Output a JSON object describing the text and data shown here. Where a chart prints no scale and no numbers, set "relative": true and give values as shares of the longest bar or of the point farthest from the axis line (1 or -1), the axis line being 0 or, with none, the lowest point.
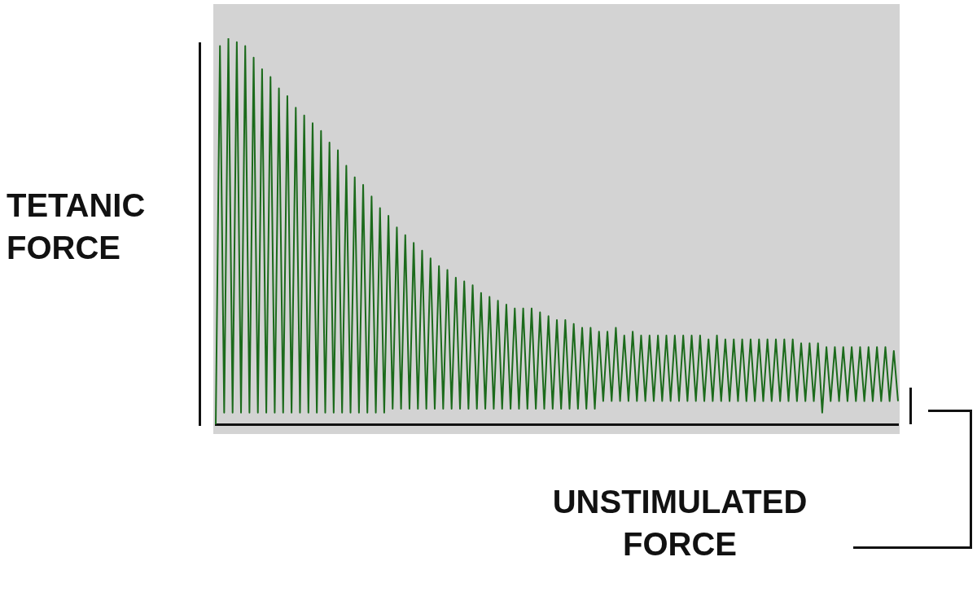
{
  "chart_data": {
    "type": "line",
    "relative": true,
    "annotations": [
      "TETANIC FORCE",
      "UNSTIMULATED FORCE"
    ],
    "categories": [
      null,
      null,
      null,
      null,
      null,
      null,
      null,
      null,
      null,
      null,
      null,
      null,
      null,
      null,
      null,
      null,
      null,
      null,
      null,
      null,
      null,
      null,
      null,
      null,
      null,
      null,
      null,
      null,
      null,
      null,
      null,
      null,
      null,
      null,
      null,
      null,
      null,
      null,
      null,
      null,
      null,
      null,
      null,
      null,
      null,
      null,
      null,
      null,
      null,
      null,
      null,
      null,
      null,
      null,
      null,
      null,
      null,
      null,
      null,
      null,
      null,
      null,
      null,
      null,
      null,
      null,
      null,
      null,
      null,
      null,
      null,
      null,
      null,
      null,
      null,
      null,
      null,
      null,
      null,
      null,
      null,
      null,
      null,
      null,
      null,
      null,
      null,
      null,
      null,
      null,
      null,
      null,
      null,
      null,
      null,
      null,
      null,
      null,
      null,
      null,
      null,
      null,
      null,
      null,
      null,
      null,
      null,
      null,
      null,
      null,
      null,
      null,
      null,
      null,
      null,
      null,
      null,
      null,
      null,
      null,
      null,
      null,
      null,
      null,
      null,
      null,
      null,
      null,
      null,
      null,
      null,
      null,
      null,
      null,
      null,
      null,
      null,
      null,
      null,
      null,
      null,
      null,
      null,
      null,
      null,
      null,
      null,
      null,
      null,
      null,
      null,
      null,
      null,
      null,
      null,
      null,
      null,
      null,
      null,
      null,
      null,
      null,
      null
    ],
    "series": [
      {
        "color": "#1b6a1b",
        "values": [
          0,
          0.98,
          0.03,
          1,
          0.03,
          0.99,
          0.03,
          0.98,
          0.03,
          0.95,
          0.03,
          0.92,
          0.03,
          0.9,
          0.03,
          0.87,
          0.03,
          0.85,
          0.03,
          0.82,
          0.03,
          0.8,
          0.03,
          0.78,
          0.03,
          0.76,
          0.03,
          0.73,
          0.03,
          0.71,
          0.03,
          0.67,
          0.03,
          0.64,
          0.03,
          0.62,
          0.03,
          0.59,
          0.03,
          0.56,
          0.03,
          0.54,
          0.04,
          0.51,
          0.04,
          0.49,
          0.04,
          0.47,
          0.04,
          0.45,
          0.04,
          0.43,
          0.04,
          0.41,
          0.04,
          0.4,
          0.04,
          0.38,
          0.04,
          0.37,
          0.04,
          0.36,
          0.04,
          0.34,
          0.04,
          0.33,
          0.04,
          0.32,
          0.04,
          0.31,
          0.04,
          0.3,
          0.04,
          0.3,
          0.04,
          0.3,
          0.04,
          0.29,
          0.04,
          0.28,
          0.04,
          0.27,
          0.04,
          0.27,
          0.04,
          0.26,
          0.04,
          0.25,
          0.04,
          0.25,
          0.04,
          0.24,
          0.06,
          0.24,
          0.06,
          0.25,
          0.06,
          0.23,
          0.06,
          0.24,
          0.06,
          0.23,
          0.06,
          0.23,
          0.06,
          0.23,
          0.06,
          0.23,
          0.06,
          0.23,
          0.06,
          0.23,
          0.06,
          0.23,
          0.06,
          0.23,
          0.06,
          0.22,
          0.06,
          0.23,
          0.06,
          0.22,
          0.06,
          0.22,
          0.06,
          0.22,
          0.06,
          0.22,
          0.06,
          0.22,
          0.06,
          0.22,
          0.06,
          0.22,
          0.06,
          0.22,
          0.06,
          0.22,
          0.06,
          0.21,
          0.06,
          0.21,
          0.06,
          0.21,
          0.03,
          0.2,
          0.06,
          0.2,
          0.06,
          0.2,
          0.06,
          0.2,
          0.06,
          0.2,
          0.06,
          0.2,
          0.06,
          0.2,
          0.06,
          0.2,
          0.06,
          0.19,
          0.06
        ]
      }
    ]
  }
}
